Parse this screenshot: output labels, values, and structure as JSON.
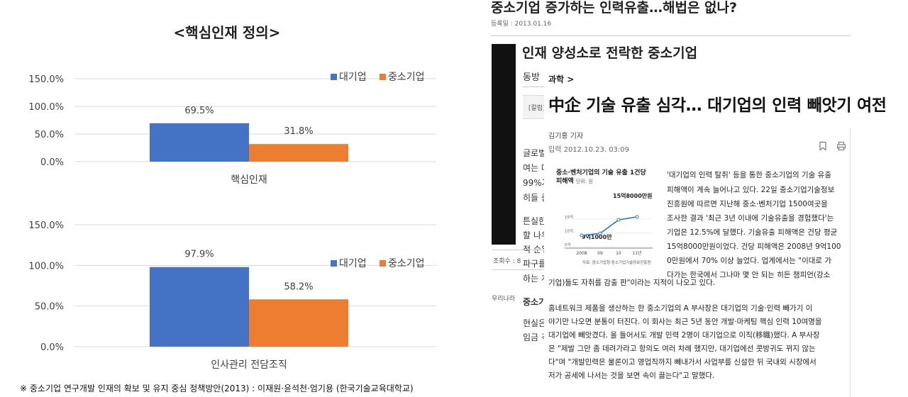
{
  "charts": {
    "main_title": "<핵심인재 정의>",
    "source_note": "※ 중소기업 연구개발 인재의 확보 및 유지 중심 정책방안(2013) : 이재원·윤석천·엄기용 (한국기술교육대학교)",
    "legend": [
      "대기업",
      "중소기업"
    ],
    "colors": {
      "large": "#4472C4",
      "small": "#ED7D31",
      "grid": "#d9d9d9",
      "axis_text": "#404040"
    }
  },
  "chart_data": [
    {
      "type": "bar",
      "title": "<핵심인재 정의>",
      "categories": [
        "핵심인재"
      ],
      "series": [
        {
          "name": "대기업",
          "values": [
            69.5
          ]
        },
        {
          "name": "중소기업",
          "values": [
            31.8
          ]
        }
      ],
      "data_labels": [
        "69.5%",
        "31.8%"
      ],
      "y_ticks": [
        "0.0%",
        "50.0%",
        "100.0%",
        "150.0%"
      ],
      "ylim": [
        0,
        150
      ],
      "grid": true,
      "legend": "right"
    },
    {
      "type": "bar",
      "categories": [
        "인사관리 전담조직"
      ],
      "series": [
        {
          "name": "대기업",
          "values": [
            97.9
          ]
        },
        {
          "name": "중소기업",
          "values": [
            58.2
          ]
        }
      ],
      "data_labels": [
        "97.9%",
        "58.2%"
      ],
      "y_ticks": [
        "0.0%",
        "50.0%",
        "100.0%",
        "150.0%"
      ],
      "ylim": [
        0,
        150
      ],
      "grid": true,
      "legend": "right"
    },
    {
      "type": "line",
      "title": "중소·벤처기업의 기술 유출 1건당 피해액",
      "unit": "단위: 원",
      "x_ticks": [
        "2008",
        "09",
        "10",
        "11년"
      ],
      "y_ticks": [
        "5억",
        "10억",
        "15억"
      ],
      "points": [
        {
          "x": "2008",
          "y": 9.1
        },
        {
          "x": "09",
          "y": 9.8
        },
        {
          "x": "10",
          "y": 14.7
        },
        {
          "x": "11년",
          "y": 15.8
        }
      ],
      "annotations": [
        "15억8000만원",
        "9억1000만"
      ],
      "source": "자료: 중소기업청·중소기업기술정보진흥원"
    }
  ],
  "article1": {
    "headline": "중소기업 증가하는 인력유출…해법은 없나?",
    "date": "등록일 : 2013.01.16"
  },
  "article2": {
    "headline": "인재 양성소로 전락한 중소기업",
    "fragments": [
      "동방",
      "[칼럼]",
      "글로벌",
      "여는 데",
      "99%가",
      "히들 중",
      "튼실한",
      "할 나우",
      "적 순위",
      "파구를",
      "하는 게",
      "조회수 : 8",
      "우리나라",
      "중소기",
      "현실은",
      "임금 격"
    ]
  },
  "article3": {
    "category": "과학 >",
    "headline": "中企 기술 유출 심각… 대기업의 인력 빼앗기 여전",
    "author": "김기홍 기자",
    "date": "입력 2012.10.23. 03:09",
    "inset_title_1": "중소·벤처기업의 기술 유출 1건당",
    "inset_title_2": "피해액",
    "inset_unit": "단위: 원",
    "inset_high": "15억8000만원",
    "inset_low": "9억1000만",
    "inset_source": "자료: 중소기업청·중소기업기술정보진흥원",
    "inset_years": [
      "2008",
      "09",
      "10",
      "11년"
    ],
    "inset_ylabels": [
      "15억",
      "10억",
      "5억"
    ],
    "body_lines": [
      "'대기업의 인력 탈취' 등을 통한 중소기업의 기술 유출",
      "피해액이 계속 늘어나고 있다. 22일 중소기업기술정보",
      "진흥원에 따르면 지난해 중소·벤처기업 1500여곳을",
      "조사한 결과 '최근 3년 이내에 기술유출을 경험했다'는",
      "기업은 12.5%에 달했다. 기술유출 피해액은 건당 평균",
      "15억8000만원이었다. 건당 피해액은 2008년 9억100",
      "0만원에서 70% 이상 늘었다. 업계에서는 \"이대로 가",
      "다가는 한국에서 그나마 몇 안 되는 히든 챔피언(강소",
      "기업)들도 자취를 감출 판\"이라는 지적이 나오고 있다.",
      "홈네트워크 제품을 생산하는 한 중소기업의 A 부사장은 대기업의 기술·인력 빼가기 이",
      "야기만 나오면 분통이 터진다. 이 회사는 최근 5년 동안 개발·마케팅 핵심 인력 10여명을",
      "대기업에 빼앗겼다. 올 들어서도 개발 인력 2명이 대기업으로 이직(移職)했다. A 부사장",
      "은 \"제발 그만 좀 데려가라고 항의도 여러 차례 했지만, 대기업에선 콧방귀도 뀌지 않는",
      "다\"며 \"개발인력은 물론이고 영업직까지 빼내가서 사업부를 신설한 뒤 국내외 시장에서",
      "저가 공세에 나서는 것을 보면 속이 끓는다\"고 말했다."
    ]
  }
}
